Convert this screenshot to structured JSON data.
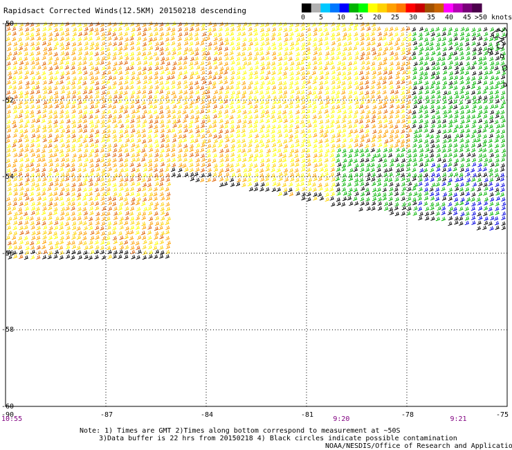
{
  "title": "Rapidsact Corrected Winds(12.5KM) 20150218 descending",
  "legend": {
    "labels": [
      "0",
      "5",
      "10",
      "15",
      "20",
      "25",
      "30",
      "35",
      "40",
      "45",
      ">50 knots"
    ],
    "colors": [
      "#000000",
      "#b0b0b0",
      "#00c8ff",
      "#0078ff",
      "#0000ff",
      "#00b400",
      "#00ff00",
      "#ffff00",
      "#ffd200",
      "#ffa000",
      "#ff7800",
      "#ff0000",
      "#c80000",
      "#a05000",
      "#c86400",
      "#ff00ff",
      "#b400b4",
      "#780078",
      "#4b004b"
    ]
  },
  "map": {
    "lat_labels": [
      "-50",
      "-52",
      "-54",
      "-56",
      "-58",
      "-60"
    ],
    "lon_labels": [
      "-90",
      "-87",
      "-84",
      "-81",
      "-78",
      "-75"
    ],
    "lon_range": [
      -90,
      -75
    ],
    "lat_range": [
      -50,
      -60
    ],
    "times": [
      {
        "label": "10:55",
        "lon": -90
      },
      {
        "label": "9:20",
        "lon": -80
      },
      {
        "label": "9:21",
        "lon": -76.5
      }
    ]
  },
  "notes": {
    "line1": "Note: 1) Times are GMT 2)Times along bottom correspond to measurement at ~50S",
    "line2": "3)Data buffer is 22 hrs from 20150218 4) Black circles indicate possible contamination",
    "credit": "NOAA/NESDIS/Office of Research and Applications"
  }
}
